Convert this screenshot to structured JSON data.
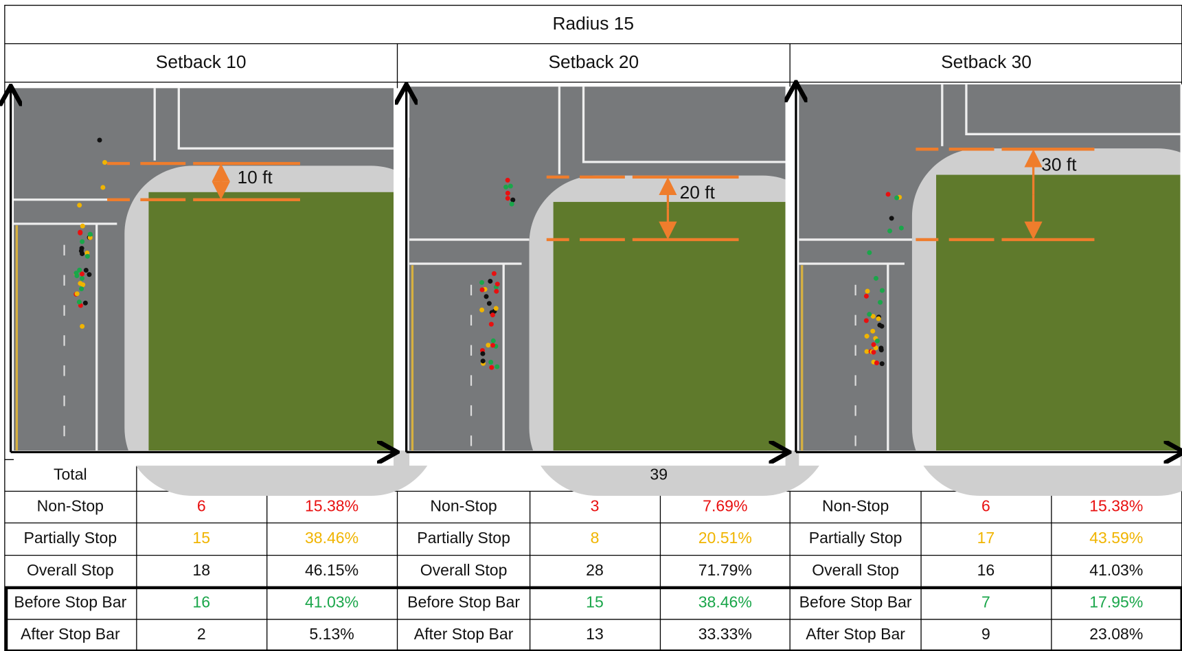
{
  "header": {
    "title": "Radius 15"
  },
  "panels": [
    {
      "title": "Setback 10",
      "dimension": "10 ft"
    },
    {
      "title": "Setback 20",
      "dimension": "20 ft"
    },
    {
      "title": "Setback 30",
      "dimension": "30 ft"
    }
  ],
  "table": {
    "total_label": "Total",
    "total": 39,
    "rows": [
      {
        "color": "#e81010",
        "cells": [
          [
            "Non-Stop",
            6,
            "15.38%"
          ],
          [
            "Non-Stop",
            3,
            "7.69%"
          ],
          [
            "Non-Stop",
            6,
            "15.38%"
          ]
        ]
      },
      {
        "color": "#f0b400",
        "cells": [
          [
            "Partially Stop",
            15,
            "38.46%"
          ],
          [
            "Partially Stop",
            8,
            "20.51%"
          ],
          [
            "Partially Stop",
            17,
            "43.59%"
          ]
        ]
      },
      {
        "color": "#111111",
        "cells": [
          [
            "Overall Stop",
            18,
            "46.15%"
          ],
          [
            "Overall Stop",
            28,
            "71.79%"
          ],
          [
            "Overall Stop",
            16,
            "41.03%"
          ]
        ]
      },
      {
        "color": "#1aa64a",
        "cells": [
          [
            "Before Stop Bar",
            16,
            "41.03%"
          ],
          [
            "Before Stop Bar",
            15,
            "38.46%"
          ],
          [
            "Before Stop Bar",
            7,
            "17.95%"
          ]
        ]
      },
      {
        "color": "#111111",
        "cells": [
          [
            "After Stop Bar",
            2,
            "5.13%"
          ],
          [
            "After Stop Bar",
            13,
            "33.33%"
          ],
          [
            "After Stop Bar",
            9,
            "23.08%"
          ]
        ]
      }
    ]
  }
}
